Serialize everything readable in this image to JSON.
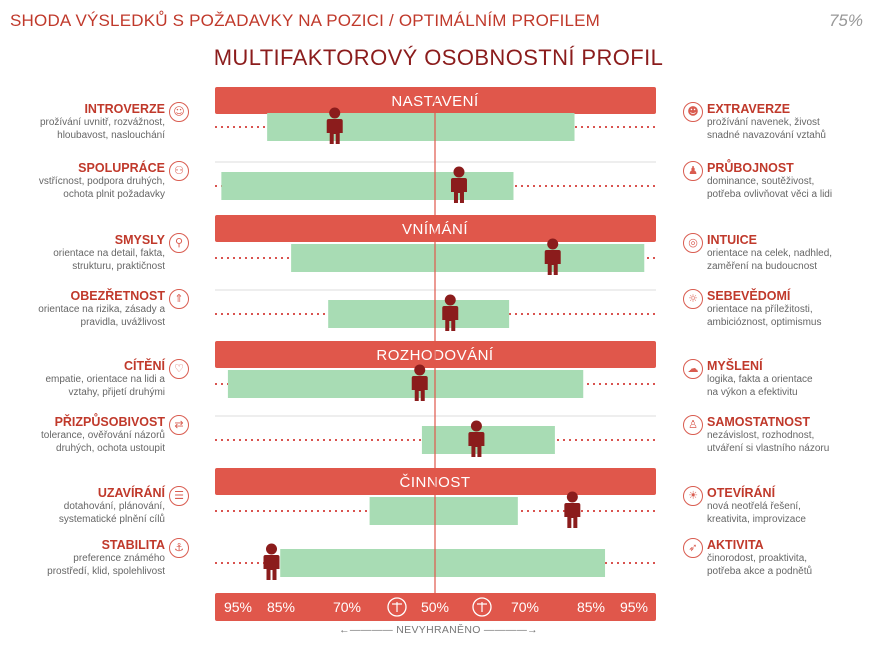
{
  "header": {
    "title": "SHODA VÝSLEDKŮ S POŽADAVKY NA POZICI / OPTIMÁLNÍM PROFILEM",
    "match_percent": "75%"
  },
  "main_title": "MULTIFAKTOROVÝ OSOBNOSTNÍ PROFIL",
  "footer_label": "NEVYHRANĚNO",
  "colors": {
    "section_bar": "#e0574b",
    "range_band": "#a8dcb4",
    "person": "#8b1c1c",
    "accent_text": "#c0392b"
  },
  "chart_data": {
    "type": "range-profile",
    "axis": {
      "tick_labels": [
        "95%",
        "85%",
        "70%",
        "50%",
        "70%",
        "85%",
        "95%"
      ],
      "center_icon": "scales-icon"
    },
    "sections": [
      {
        "name": "NASTAVENÍ",
        "rows": [
          {
            "left": {
              "name": "INTROVERZE",
              "desc": [
                "prožívání uvnitř, rozvážnost,",
                "hloubavost, naslouchání"
              ],
              "icon": "introvert-person-icon"
            },
            "right": {
              "name": "EXTRAVERZE",
              "desc": [
                "prožívání navenek, živost",
                "snadné navazování vztahů"
              ],
              "icon": "extravert-person-icon"
            },
            "range": [
              -77,
              64
            ],
            "person": -46
          },
          {
            "left": {
              "name": "SPOLUPRÁCE",
              "desc": [
                "vstřícnost, podpora druhých,",
                "ochota plnit požadavky"
              ],
              "icon": "cooperation-people-icon"
            },
            "right": {
              "name": "PRŮBOJNOST",
              "desc": [
                "dominance, soutěživost,",
                "potřeba ovlivňovat věci a lidi"
              ],
              "icon": "assertive-person-icon"
            },
            "range": [
              -98,
              36
            ],
            "person": 11
          }
        ]
      },
      {
        "name": "VNÍMÁNÍ",
        "rows": [
          {
            "left": {
              "name": "SMYSLY",
              "desc": [
                "orientace na detail, fakta,",
                "strukturu, praktičnost"
              ],
              "icon": "magnifier-icon"
            },
            "right": {
              "name": "INTUICE",
              "desc": [
                "orientace na celek, nadhled,",
                "zaměření na budoucnost"
              ],
              "icon": "globe-icon"
            },
            "range": [
              -66,
              96
            ],
            "person": 54
          },
          {
            "left": {
              "name": "OBEZŘETNOST",
              "desc": [
                "orientace na rizika, zásady a",
                "pravidla, uvážlivost"
              ],
              "icon": "shield-arrow-icon"
            },
            "right": {
              "name": "SEBEVĚDOMÍ",
              "desc": [
                "orientace na příležitosti,",
                "ambicióznost, optimismus"
              ],
              "icon": "confident-person-icon"
            },
            "range": [
              -49,
              34
            ],
            "person": 7
          }
        ]
      },
      {
        "name": "ROZHODOVÁNÍ",
        "rows": [
          {
            "left": {
              "name": "CÍTĚNÍ",
              "desc": [
                "empatie, orientace na lidi a",
                "vztahy, přijetí druhými"
              ],
              "icon": "heart-icon"
            },
            "right": {
              "name": "MYŠLENÍ",
              "desc": [
                "logika, fakta a orientace",
                "na výkon a efektivitu"
              ],
              "icon": "brain-head-icon"
            },
            "range": [
              -95,
              68
            ],
            "person": -7
          },
          {
            "left": {
              "name": "PŘIZPŮSOBIVOST",
              "desc": [
                "tolerance, ověřování názorů",
                "druhých, ochota ustoupit"
              ],
              "icon": "adapt-arrows-icon"
            },
            "right": {
              "name": "SAMOSTATNOST",
              "desc": [
                "nezávislost, rozhodnost,",
                "utváření si vlastního názoru"
              ],
              "icon": "independent-person-icon"
            },
            "range": [
              -6,
              55
            ],
            "person": 19
          }
        ]
      },
      {
        "name": "ČINNOST",
        "rows": [
          {
            "left": {
              "name": "UZAVÍRÁNÍ",
              "desc": [
                "dotahování, plánování,",
                "systematické plnění cílů"
              ],
              "icon": "checklist-icon"
            },
            "right": {
              "name": "OTEVÍRÁNÍ",
              "desc": [
                "nová neotřelá řešení,",
                "kreativita, improvizace"
              ],
              "icon": "lightbulb-icon"
            },
            "range": [
              -30,
              38
            ],
            "person": 63
          },
          {
            "left": {
              "name": "STABILITA",
              "desc": [
                "preference známého",
                "prostředí, klid, spolehlivost"
              ],
              "icon": "stable-person-icon"
            },
            "right": {
              "name": "AKTIVITA",
              "desc": [
                "činorodost, proaktivita,",
                "potřeba akce a podnětů"
              ],
              "icon": "active-running-icon"
            },
            "range": [
              -71,
              78
            ],
            "person": -75
          }
        ]
      }
    ]
  }
}
